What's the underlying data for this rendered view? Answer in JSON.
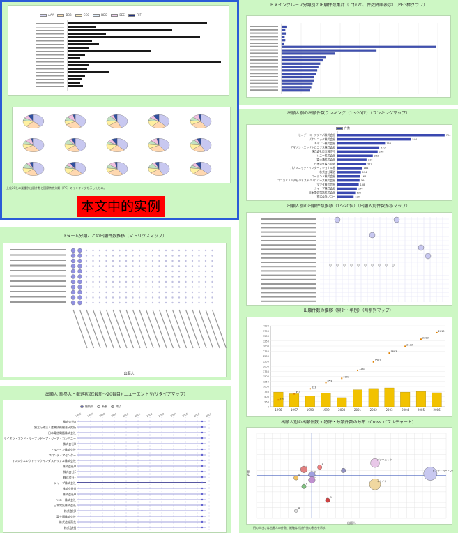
{
  "p1": {
    "chart_title": "",
    "pie_title": "",
    "example_label": "本文中的实例",
    "caption": "上位20社の業種別出願件数と国際特許分類（IPC）のランキングを示したもの。"
  },
  "p2": {
    "title": "Fターム分類ごとの出願件数推移（マトリクスマップ）",
    "xlabel": "出願人"
  },
  "p3": {
    "title": "出願人 新参入・撤退状況(最新～20番目)(ニューエントリ/リタイアマップ)",
    "legend": [
      "継続中",
      "新参",
      "終了"
    ],
    "years": [
      "1996",
      "1997",
      "1998",
      "1999",
      "2000",
      "2001",
      "2002",
      "2003",
      "2004",
      "2005",
      "2006",
      "2007"
    ],
    "rows": [
      "株式会社A",
      "独立行政法人産業技術総合研究所",
      "日本電信電話株式会社",
      "ライオン・アンド・ラーナンドーア・ジーア・カンパニー",
      "株式会社B",
      "アルバイン株式会社",
      "フロンティアセンター",
      "マツシタエレクトリックインダストリアル株式会社",
      "株式会社D",
      "株式会社E",
      "株式会社F",
      "シャープ株式会社",
      "株式会社G",
      "株式会社H",
      "ソニー株式会社",
      "日本電気株式会社",
      "株式会社I",
      "富士通株式会社",
      "株式会社東芝",
      "株式会社J"
    ]
  },
  "p4": {
    "title": "ドメイングループ分類別の出願件数集計（上位20、件数降順表示）（PEG棒グラフ）"
  },
  "p5": {
    "title": "出願人別の出願件数ランキング（1～20位）（ランキングマップ）",
    "legend": "件数",
    "rows": [
      {
        "name": "ヒノデ・ヨーアプリパ株式会社",
        "v": 794
      },
      {
        "name": "パナソニック株式会社",
        "v": 544
      },
      {
        "name": "キヤノン株式会社",
        "v": 353
      },
      {
        "name": "アマゾン・エレクトロニクス株式会社",
        "v": 310
      },
      {
        "name": "株式会社日立製作所",
        "v": 298
      },
      {
        "name": "ソニー株式会社",
        "v": 262
      },
      {
        "name": "富士通株式会社",
        "v": 216
      },
      {
        "name": "日本電気株式会社",
        "v": 212
      },
      {
        "name": "パナソニック・インターナショナル社",
        "v": 184
      },
      {
        "name": "株式会社東芝",
        "v": 174
      },
      {
        "name": "ローランド株式会社",
        "v": 168
      },
      {
        "name": "コニカミノルタビジネステクノロジーズ株式会社",
        "v": 164
      },
      {
        "name": "マツダ株式会社",
        "v": 158
      },
      {
        "name": "シャープ株式会社",
        "v": 144
      },
      {
        "name": "日本電信電話株式会社",
        "v": 132
      },
      {
        "name": "株式会社リコー",
        "v": 120
      }
    ]
  },
  "p6": {
    "title": "出願人別の出願件数推移（1～20位）（出願人別件数推移マップ）"
  },
  "p7": {
    "title": "出願件数の推移（累計・年別）（時系列マップ）",
    "chart_data": {
      "type": "bar",
      "categories": [
        "1996",
        "1997",
        "1998",
        "1999",
        "2000",
        "2001",
        "2002",
        "2003",
        "2004",
        "2005",
        "2006"
      ],
      "values": [
        240,
        213,
        180,
        220,
        150,
        280,
        300,
        310,
        240,
        250,
        230
      ],
      "line": [
        240,
        453,
        633,
        853,
        1003,
        1283,
        1583,
        1893,
        2133,
        2383,
        2613
      ],
      "ylim": [
        0,
        4000
      ]
    }
  },
  "p8": {
    "title": "出願人別の出願件数 x 特許・分類件数の分布（Cross バブルチャート）",
    "xlabel": "出願人",
    "ylabel": "件数",
    "caption": "円の大きさは出願人の件数、縦軸は特許件数の割合を示す。",
    "chart_data": {
      "type": "scatter",
      "points": [
        {
          "label": "ヒノデ・ヨーアプリパ株式会社",
          "x": 20,
          "y": 0.2,
          "r": 6,
          "c": "#c8c8f0"
        },
        {
          "label": "パナソニック",
          "x": 13,
          "y": 1.2,
          "r": 4,
          "c": "#e8c8e8"
        },
        {
          "label": "キヤノン",
          "x": 13,
          "y": -0.8,
          "r": 5,
          "c": "#f0d8a0"
        },
        {
          "label": "A",
          "x": 4,
          "y": 0.6,
          "r": 3,
          "c": "#e08080"
        },
        {
          "label": "B",
          "x": 5,
          "y": 0.1,
          "r": 3,
          "c": "#a0a0e0"
        },
        {
          "label": "C",
          "x": 5,
          "y": -0.4,
          "r": 3,
          "c": "#c090d0"
        },
        {
          "label": "D",
          "x": 3,
          "y": -0.2,
          "r": 2,
          "c": "#f0c060"
        },
        {
          "label": "E",
          "x": 6,
          "y": 0.8,
          "r": 2,
          "c": "#f08080"
        },
        {
          "label": "F",
          "x": 4,
          "y": -1.0,
          "r": 2,
          "c": "#80c080"
        },
        {
          "label": "G",
          "x": 7,
          "y": -2.3,
          "r": 2,
          "c": "#d04040"
        },
        {
          "label": "H",
          "x": 3,
          "y": -3.3,
          "r": 1.5,
          "c": "#e0e0e0"
        },
        {
          "label": "I",
          "x": 9,
          "y": 0.5,
          "r": 2,
          "c": "#9090c0"
        }
      ],
      "xlim": [
        -2,
        22
      ],
      "ylim": [
        -4,
        4
      ]
    }
  }
}
